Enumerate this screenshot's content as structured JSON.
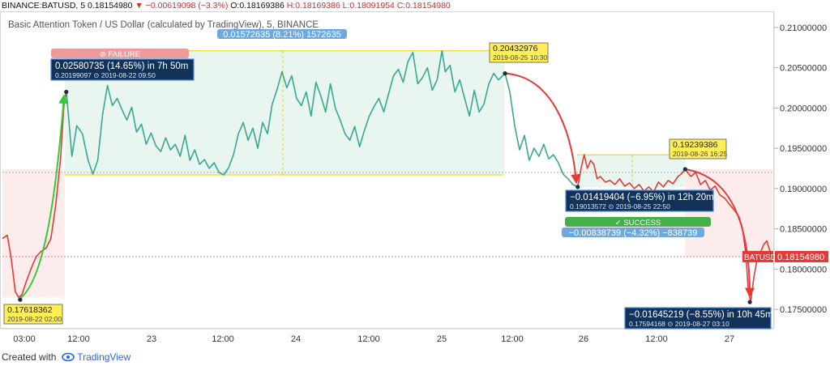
{
  "header": {
    "symbol": "BINANCE:BATUSD, 5",
    "last": "0.18154980",
    "change": "−0.00619098 (−3.3%)",
    "open": "O:0.18169386",
    "high": "H:0.18169386",
    "low": "L:0.18091954",
    "close": "C:0.18154980"
  },
  "subtitle": "Basic Attention Token / US Dollar (calculated by TradingView), 5, BINANCE",
  "footer": {
    "created_with": "Created with",
    "brand": "TradingView"
  },
  "colors": {
    "line": "#3aa796",
    "fill": "#e9f5ef",
    "red": "#e53935",
    "green": "#33cc33",
    "navy": "#12325a",
    "yellow": "#ffee55"
  },
  "chart_data": {
    "type": "line",
    "title": "Basic Attention Token / US Dollar (calculated by TradingView), 5, BINANCE",
    "y_axis": {
      "ticks": [
        "0.21000000",
        "0.20500000",
        "0.20000000",
        "0.19500000",
        "0.19000000",
        "0.18500000",
        "0.18000000",
        "0.17500000"
      ],
      "ylim": [
        0.1728,
        0.2118
      ]
    },
    "x_axis": {
      "ticks": [
        "03:00",
        "12:00",
        "23",
        "12:00",
        "24",
        "12:00",
        "25",
        "12:00",
        "26",
        "12:00",
        "27"
      ]
    },
    "price_label": {
      "name": "BATUSD",
      "value": "0.18154980"
    },
    "series": [
      {
        "segment": "rise",
        "points": [
          [
            0,
            0.1838
          ],
          [
            6,
            0.1842
          ],
          [
            11,
            0.1812
          ],
          [
            16,
            0.1772
          ],
          [
            20,
            0.1765
          ],
          [
            24,
            0.1768
          ],
          [
            30,
            0.1786
          ],
          [
            36,
            0.1802
          ],
          [
            42,
            0.1816
          ],
          [
            48,
            0.1822
          ],
          [
            54,
            0.1826
          ],
          [
            60,
            0.1838
          ],
          [
            66,
            0.188
          ],
          [
            72,
            0.1938
          ],
          [
            76,
            0.2002
          ],
          [
            79,
            0.2022
          ]
        ]
      },
      {
        "segment": "range",
        "points": [
          [
            79,
            0.2022
          ],
          [
            86,
            0.194
          ],
          [
            92,
            0.1978
          ],
          [
            99,
            0.1968
          ],
          [
            106,
            0.1935
          ],
          [
            112,
            0.1918
          ],
          [
            118,
            0.1935
          ],
          [
            124,
            0.1992
          ],
          [
            130,
            0.2028
          ],
          [
            136,
            0.2003
          ],
          [
            142,
            0.2012
          ],
          [
            148,
            0.1998
          ],
          [
            154,
            0.1985
          ],
          [
            160,
            0.2001
          ],
          [
            166,
            0.197
          ],
          [
            172,
            0.198
          ],
          [
            178,
            0.1955
          ],
          [
            184,
            0.1969
          ],
          [
            190,
            0.1953
          ],
          [
            196,
            0.1946
          ],
          [
            202,
            0.1963
          ],
          [
            208,
            0.1948
          ],
          [
            214,
            0.1955
          ],
          [
            220,
            0.194
          ],
          [
            226,
            0.1966
          ],
          [
            232,
            0.1935
          ],
          [
            238,
            0.1948
          ],
          [
            244,
            0.193
          ],
          [
            250,
            0.1936
          ],
          [
            256,
            0.1925
          ],
          [
            262,
            0.1932
          ],
          [
            268,
            0.192
          ],
          [
            274,
            0.1917
          ],
          [
            280,
            0.1926
          ],
          [
            286,
            0.1942
          ],
          [
            292,
            0.1968
          ],
          [
            298,
            0.1982
          ],
          [
            304,
            0.196
          ],
          [
            310,
            0.1975
          ],
          [
            316,
            0.195
          ],
          [
            322,
            0.1982
          ],
          [
            328,
            0.1968
          ],
          [
            334,
            0.2005
          ],
          [
            340,
            0.2023
          ],
          [
            346,
            0.2045
          ],
          [
            352,
            0.2025
          ],
          [
            358,
            0.204
          ],
          [
            364,
            0.2012
          ],
          [
            370,
            0.2003
          ],
          [
            376,
            0.202
          ],
          [
            382,
            0.199
          ],
          [
            388,
            0.2032
          ],
          [
            394,
            0.2015
          ],
          [
            400,
            0.1995
          ],
          [
            406,
            0.203
          ],
          [
            412,
            0.2
          ],
          [
            418,
            0.1985
          ],
          [
            424,
            0.1968
          ],
          [
            430,
            0.196
          ],
          [
            436,
            0.1977
          ],
          [
            442,
            0.1952
          ],
          [
            448,
            0.1972
          ],
          [
            454,
            0.199
          ],
          [
            460,
            0.2002
          ],
          [
            466,
            0.2012
          ],
          [
            472,
            0.1995
          ],
          [
            478,
            0.2018
          ],
          [
            484,
            0.204
          ],
          [
            490,
            0.2048
          ],
          [
            496,
            0.2032
          ],
          [
            502,
            0.2058
          ],
          [
            508,
            0.2069
          ],
          [
            514,
            0.203
          ],
          [
            520,
            0.2038
          ],
          [
            526,
            0.205
          ],
          [
            532,
            0.2022
          ],
          [
            538,
            0.2035
          ],
          [
            544,
            0.2071
          ],
          [
            548,
            0.2045
          ],
          [
            554,
            0.2053
          ],
          [
            560,
            0.202
          ],
          [
            566,
            0.2035
          ],
          [
            572,
            0.2012
          ],
          [
            578,
            0.199
          ],
          [
            584,
            0.2022
          ],
          [
            590,
            0.1995
          ],
          [
            596,
            0.2005
          ],
          [
            602,
            0.203
          ],
          [
            608,
            0.2043
          ],
          [
            614,
            0.2035
          ],
          [
            622,
            0.2043
          ]
        ]
      },
      {
        "segment": "drop1",
        "points": [
          [
            622,
            0.2043
          ],
          [
            628,
            0.202
          ],
          [
            634,
            0.1978
          ],
          [
            640,
            0.1948
          ],
          [
            646,
            0.1966
          ],
          [
            652,
            0.1935
          ],
          [
            658,
            0.195
          ],
          [
            664,
            0.194
          ],
          [
            670,
            0.1955
          ],
          [
            676,
            0.1937
          ],
          [
            682,
            0.1942
          ],
          [
            688,
            0.1932
          ],
          [
            694,
            0.1918
          ],
          [
            700,
            0.1912
          ],
          [
            706,
            0.1905
          ],
          [
            712,
            0.1902
          ]
        ]
      },
      {
        "segment": "bounce",
        "points": [
          [
            712,
            0.1902
          ],
          [
            716,
            0.1924
          ],
          [
            720,
            0.1942
          ],
          [
            724,
            0.1925
          ],
          [
            728,
            0.1935
          ],
          [
            732,
            0.193
          ],
          [
            736,
            0.1912
          ],
          [
            740,
            0.1915
          ],
          [
            746,
            0.1908
          ],
          [
            752,
            0.191
          ],
          [
            758,
            0.1905
          ],
          [
            764,
            0.1912
          ],
          [
            770,
            0.1903
          ],
          [
            776,
            0.1907
          ],
          [
            782,
            0.19
          ],
          [
            788,
            0.1905
          ],
          [
            794,
            0.1897
          ],
          [
            800,
            0.1902
          ],
          [
            806,
            0.1896
          ],
          [
            812,
            0.1908
          ],
          [
            818,
            0.1902
          ],
          [
            824,
            0.191
          ],
          [
            830,
            0.1906
          ],
          [
            836,
            0.1915
          ],
          [
            840,
            0.1918
          ],
          [
            845,
            0.1924
          ]
        ]
      },
      {
        "segment": "drop2",
        "points": [
          [
            845,
            0.1924
          ],
          [
            852,
            0.1915
          ],
          [
            858,
            0.192
          ],
          [
            864,
            0.1905
          ],
          [
            870,
            0.191
          ],
          [
            876,
            0.1898
          ],
          [
            882,
            0.1903
          ],
          [
            888,
            0.1892
          ],
          [
            894,
            0.1888
          ],
          [
            900,
            0.188
          ],
          [
            906,
            0.1873
          ],
          [
            912,
            0.1864
          ],
          [
            916,
            0.185
          ],
          [
            920,
            0.182
          ],
          [
            923,
            0.1775
          ],
          [
            926,
            0.1759
          ],
          [
            930,
            0.179
          ],
          [
            934,
            0.1812
          ],
          [
            938,
            0.182
          ],
          [
            942,
            0.183
          ],
          [
            946,
            0.1835
          ],
          [
            950,
            0.1822
          ],
          [
            953,
            0.1815
          ]
        ]
      }
    ],
    "annotations": [
      {
        "id": "low1",
        "price": "0.17618362",
        "date": "2019-08-22 02:00"
      },
      {
        "id": "measure1",
        "text": "0.02580735 (14.65%) in 7h 50m",
        "sub_price": "0.20199097",
        "sub_date": "2019-08-22  09:50"
      },
      {
        "id": "failure",
        "text": "⊘ FAILURE"
      },
      {
        "id": "range_label",
        "text": "0.01572635 (8.21%) 1572635"
      },
      {
        "id": "high1",
        "price": "0.20432976",
        "date": "2019-08-25 10:30"
      },
      {
        "id": "measure2",
        "text": "−0.01419404 (−6.95%) in 12h 20m",
        "sub_price": "0.19013572",
        "sub_date": "2019-08-25  22:50"
      },
      {
        "id": "success",
        "text": "✓ SUCCESS"
      },
      {
        "id": "success_label",
        "text": "−0.00838739 (−4.32%) −838739"
      },
      {
        "id": "high2",
        "price": "0.19239386",
        "date": "2019-08-26 16:25"
      },
      {
        "id": "measure3",
        "text": "−0.01645219 (−8.55%) in 10h 45m",
        "sub_price": "0.17594168",
        "sub_date": "2019-08-27  03:10"
      }
    ]
  }
}
